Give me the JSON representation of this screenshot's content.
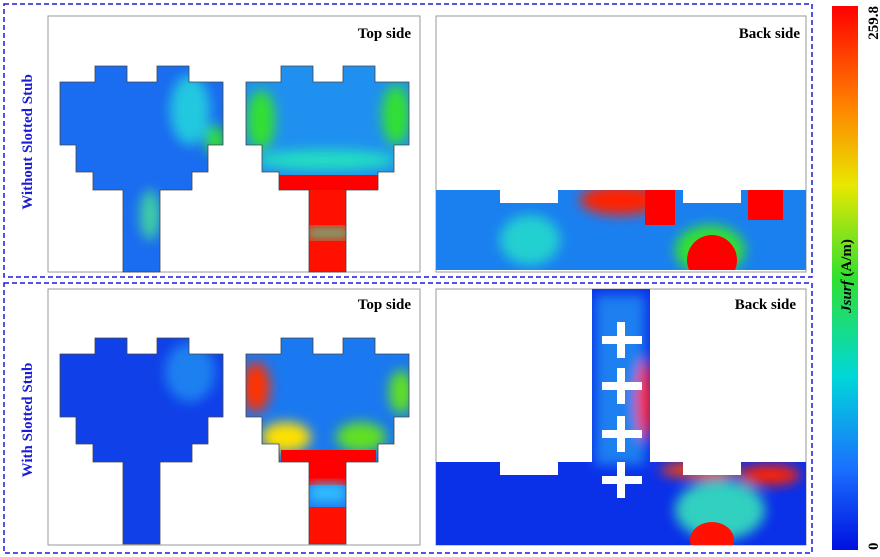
{
  "rows": [
    {
      "label": "Without Slotted Stub",
      "panels": [
        {
          "label": "Top side"
        },
        {
          "label": "Back side"
        }
      ]
    },
    {
      "label": "With Slotted Stub",
      "panels": [
        {
          "label": "Top side"
        },
        {
          "label": "Back side"
        }
      ]
    }
  ],
  "colorbar": {
    "title": "Jsurf",
    "unit": "(A/m)",
    "max": 259.8,
    "min": 0
  }
}
